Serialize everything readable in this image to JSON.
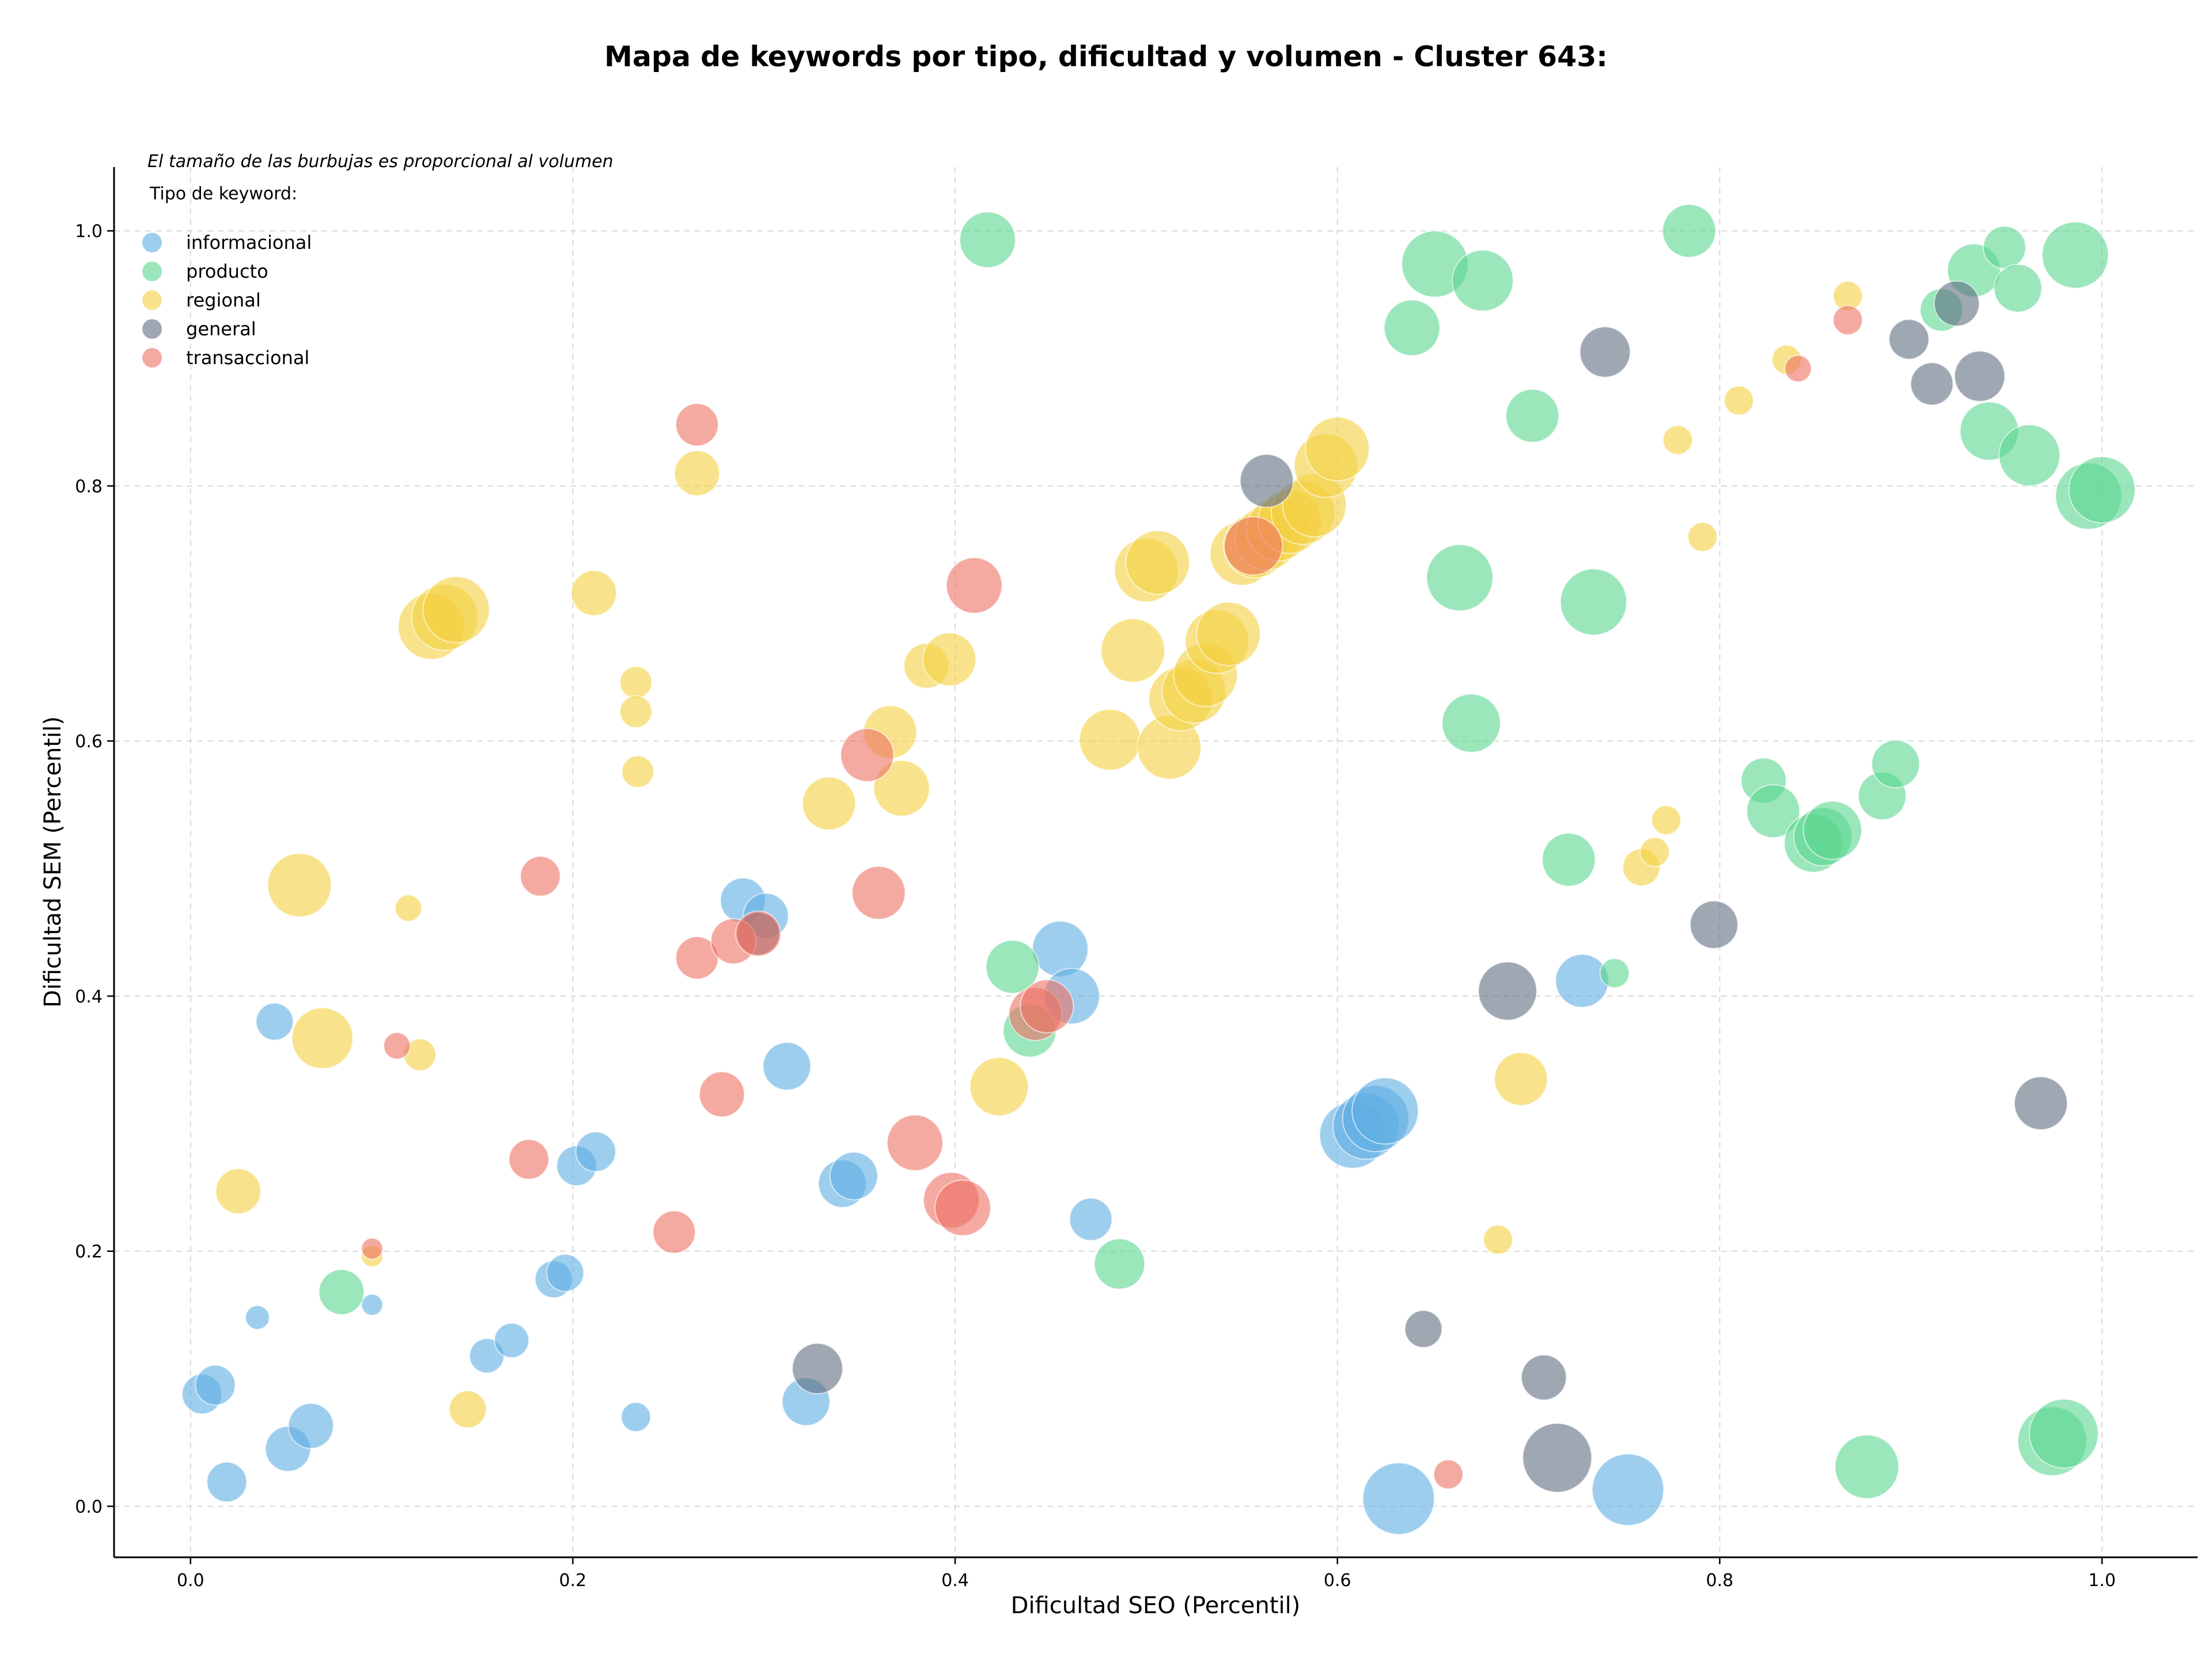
{
  "chart_data": {
    "type": "scatter",
    "title": "Mapa de keywords por tipo, dificultad y volumen - Cluster 643:",
    "xlabel": "Dificultad SEO (Percentil)",
    "ylabel": "Dificultad SEM (Percentil)",
    "xlim": [
      -0.04,
      1.05
    ],
    "ylim": [
      -0.04,
      1.05
    ],
    "xticks": [
      0.0,
      0.2,
      0.4,
      0.6,
      0.8,
      1.0
    ],
    "xtick_labels": [
      "0.0",
      "0.2",
      "0.4",
      "0.6",
      "0.8",
      "1.0"
    ],
    "yticks": [
      0.0,
      0.2,
      0.4,
      0.6,
      0.8,
      1.0
    ],
    "ytick_labels": [
      "0.0",
      "0.2",
      "0.4",
      "0.6",
      "0.8",
      "1.0"
    ],
    "grid": true,
    "size_note": "El tamaño de las burbujas es proporcional al volumen",
    "legend_title": "Tipo de keyword:",
    "legend_position": "top-left",
    "series": [
      {
        "name": "informacional",
        "color": "#5DADE2",
        "points": [
          {
            "x": 0.006,
            "y": 0.088,
            "s": 30
          },
          {
            "x": 0.013,
            "y": 0.095,
            "s": 30
          },
          {
            "x": 0.019,
            "y": 0.019,
            "s": 30
          },
          {
            "x": 0.035,
            "y": 0.148,
            "s": 18
          },
          {
            "x": 0.044,
            "y": 0.38,
            "s": 28
          },
          {
            "x": 0.051,
            "y": 0.045,
            "s": 34
          },
          {
            "x": 0.063,
            "y": 0.063,
            "s": 34
          },
          {
            "x": 0.095,
            "y": 0.158,
            "s": 16
          },
          {
            "x": 0.155,
            "y": 0.118,
            "s": 26
          },
          {
            "x": 0.168,
            "y": 0.13,
            "s": 26
          },
          {
            "x": 0.19,
            "y": 0.178,
            "s": 28
          },
          {
            "x": 0.196,
            "y": 0.183,
            "s": 28
          },
          {
            "x": 0.202,
            "y": 0.267,
            "s": 30
          },
          {
            "x": 0.212,
            "y": 0.278,
            "s": 30
          },
          {
            "x": 0.233,
            "y": 0.07,
            "s": 22
          },
          {
            "x": 0.289,
            "y": 0.475,
            "s": 34
          },
          {
            "x": 0.301,
            "y": 0.463,
            "s": 34
          },
          {
            "x": 0.312,
            "y": 0.345,
            "s": 36
          },
          {
            "x": 0.322,
            "y": 0.082,
            "s": 36
          },
          {
            "x": 0.341,
            "y": 0.253,
            "s": 36
          },
          {
            "x": 0.347,
            "y": 0.259,
            "s": 36
          },
          {
            "x": 0.455,
            "y": 0.437,
            "s": 42
          },
          {
            "x": 0.461,
            "y": 0.4,
            "s": 42
          },
          {
            "x": 0.471,
            "y": 0.225,
            "s": 32
          },
          {
            "x": 0.608,
            "y": 0.291,
            "s": 50
          },
          {
            "x": 0.615,
            "y": 0.298,
            "s": 50
          },
          {
            "x": 0.62,
            "y": 0.304,
            "s": 50
          },
          {
            "x": 0.625,
            "y": 0.31,
            "s": 50
          },
          {
            "x": 0.632,
            "y": 0.006,
            "s": 54
          },
          {
            "x": 0.728,
            "y": 0.412,
            "s": 40
          },
          {
            "x": 0.752,
            "y": 0.013,
            "s": 54
          }
        ]
      },
      {
        "name": "producto",
        "color": "#58D68D",
        "points": [
          {
            "x": 0.079,
            "y": 0.168,
            "s": 34
          },
          {
            "x": 0.417,
            "y": 0.993,
            "s": 42
          },
          {
            "x": 0.43,
            "y": 0.423,
            "s": 40
          },
          {
            "x": 0.439,
            "y": 0.373,
            "s": 40
          },
          {
            "x": 0.486,
            "y": 0.19,
            "s": 38
          },
          {
            "x": 0.639,
            "y": 0.924,
            "s": 42
          },
          {
            "x": 0.651,
            "y": 0.974,
            "s": 50
          },
          {
            "x": 0.664,
            "y": 0.728,
            "s": 50
          },
          {
            "x": 0.67,
            "y": 0.614,
            "s": 44
          },
          {
            "x": 0.676,
            "y": 0.961,
            "s": 46
          },
          {
            "x": 0.702,
            "y": 0.855,
            "s": 40
          },
          {
            "x": 0.721,
            "y": 0.507,
            "s": 40
          },
          {
            "x": 0.734,
            "y": 0.709,
            "s": 50
          },
          {
            "x": 0.745,
            "y": 0.418,
            "s": 22
          },
          {
            "x": 0.784,
            "y": 1.0,
            "s": 40
          },
          {
            "x": 0.823,
            "y": 0.569,
            "s": 34
          },
          {
            "x": 0.828,
            "y": 0.545,
            "s": 40
          },
          {
            "x": 0.849,
            "y": 0.52,
            "s": 44
          },
          {
            "x": 0.854,
            "y": 0.525,
            "s": 44
          },
          {
            "x": 0.859,
            "y": 0.53,
            "s": 44
          },
          {
            "x": 0.877,
            "y": 0.031,
            "s": 48
          },
          {
            "x": 0.885,
            "y": 0.557,
            "s": 36
          },
          {
            "x": 0.892,
            "y": 0.582,
            "s": 36
          },
          {
            "x": 0.916,
            "y": 0.938,
            "s": 32
          },
          {
            "x": 0.933,
            "y": 0.969,
            "s": 40
          },
          {
            "x": 0.941,
            "y": 0.843,
            "s": 44
          },
          {
            "x": 0.949,
            "y": 0.987,
            "s": 32
          },
          {
            "x": 0.956,
            "y": 0.955,
            "s": 36
          },
          {
            "x": 0.962,
            "y": 0.824,
            "s": 46
          },
          {
            "x": 0.974,
            "y": 0.051,
            "s": 52
          },
          {
            "x": 0.98,
            "y": 0.057,
            "s": 52
          },
          {
            "x": 0.986,
            "y": 0.981,
            "s": 50
          },
          {
            "x": 0.993,
            "y": 0.792,
            "s": 50
          },
          {
            "x": 1.0,
            "y": 0.797,
            "s": 50
          }
        ]
      },
      {
        "name": "regional",
        "color": "#F4D03F",
        "points": [
          {
            "x": 0.025,
            "y": 0.247,
            "s": 34
          },
          {
            "x": 0.057,
            "y": 0.487,
            "s": 48
          },
          {
            "x": 0.069,
            "y": 0.367,
            "s": 46
          },
          {
            "x": 0.095,
            "y": 0.196,
            "s": 16
          },
          {
            "x": 0.114,
            "y": 0.469,
            "s": 20
          },
          {
            "x": 0.12,
            "y": 0.354,
            "s": 24
          },
          {
            "x": 0.126,
            "y": 0.69,
            "s": 50
          },
          {
            "x": 0.133,
            "y": 0.697,
            "s": 50
          },
          {
            "x": 0.139,
            "y": 0.703,
            "s": 50
          },
          {
            "x": 0.145,
            "y": 0.076,
            "s": 28
          },
          {
            "x": 0.211,
            "y": 0.716,
            "s": 34
          },
          {
            "x": 0.233,
            "y": 0.646,
            "s": 24
          },
          {
            "x": 0.233,
            "y": 0.623,
            "s": 24
          },
          {
            "x": 0.234,
            "y": 0.576,
            "s": 24
          },
          {
            "x": 0.265,
            "y": 0.81,
            "s": 34
          },
          {
            "x": 0.334,
            "y": 0.551,
            "s": 40
          },
          {
            "x": 0.366,
            "y": 0.607,
            "s": 40
          },
          {
            "x": 0.372,
            "y": 0.563,
            "s": 42
          },
          {
            "x": 0.385,
            "y": 0.659,
            "s": 34
          },
          {
            "x": 0.397,
            "y": 0.664,
            "s": 40
          },
          {
            "x": 0.423,
            "y": 0.329,
            "s": 44
          },
          {
            "x": 0.481,
            "y": 0.601,
            "s": 46
          },
          {
            "x": 0.493,
            "y": 0.671,
            "s": 48
          },
          {
            "x": 0.5,
            "y": 0.734,
            "s": 48
          },
          {
            "x": 0.506,
            "y": 0.74,
            "s": 48
          },
          {
            "x": 0.512,
            "y": 0.595,
            "s": 48
          },
          {
            "x": 0.518,
            "y": 0.633,
            "s": 48
          },
          {
            "x": 0.525,
            "y": 0.639,
            "s": 48
          },
          {
            "x": 0.531,
            "y": 0.652,
            "s": 48
          },
          {
            "x": 0.537,
            "y": 0.678,
            "s": 48
          },
          {
            "x": 0.543,
            "y": 0.684,
            "s": 48
          },
          {
            "x": 0.55,
            "y": 0.747,
            "s": 48
          },
          {
            "x": 0.557,
            "y": 0.753,
            "s": 48
          },
          {
            "x": 0.563,
            "y": 0.759,
            "s": 48
          },
          {
            "x": 0.569,
            "y": 0.766,
            "s": 48
          },
          {
            "x": 0.575,
            "y": 0.772,
            "s": 48
          },
          {
            "x": 0.582,
            "y": 0.779,
            "s": 48
          },
          {
            "x": 0.588,
            "y": 0.785,
            "s": 48
          },
          {
            "x": 0.594,
            "y": 0.816,
            "s": 48
          },
          {
            "x": 0.6,
            "y": 0.829,
            "s": 48
          },
          {
            "x": 0.696,
            "y": 0.335,
            "s": 40
          },
          {
            "x": 0.684,
            "y": 0.209,
            "s": 22
          },
          {
            "x": 0.759,
            "y": 0.501,
            "s": 28
          },
          {
            "x": 0.766,
            "y": 0.513,
            "s": 22
          },
          {
            "x": 0.772,
            "y": 0.538,
            "s": 22
          },
          {
            "x": 0.778,
            "y": 0.836,
            "s": 22
          },
          {
            "x": 0.791,
            "y": 0.76,
            "s": 22
          },
          {
            "x": 0.81,
            "y": 0.867,
            "s": 22
          },
          {
            "x": 0.835,
            "y": 0.899,
            "s": 22
          },
          {
            "x": 0.867,
            "y": 0.949,
            "s": 22
          }
        ]
      },
      {
        "name": "general",
        "color": "#5D6D7E",
        "points": [
          {
            "x": 0.297,
            "y": 0.449,
            "s": 32
          },
          {
            "x": 0.328,
            "y": 0.108,
            "s": 38
          },
          {
            "x": 0.563,
            "y": 0.804,
            "s": 40
          },
          {
            "x": 0.645,
            "y": 0.139,
            "s": 28
          },
          {
            "x": 0.689,
            "y": 0.404,
            "s": 44
          },
          {
            "x": 0.708,
            "y": 0.101,
            "s": 34
          },
          {
            "x": 0.715,
            "y": 0.038,
            "s": 52
          },
          {
            "x": 0.74,
            "y": 0.905,
            "s": 38
          },
          {
            "x": 0.797,
            "y": 0.456,
            "s": 36
          },
          {
            "x": 0.899,
            "y": 0.915,
            "s": 30
          },
          {
            "x": 0.911,
            "y": 0.88,
            "s": 32
          },
          {
            "x": 0.924,
            "y": 0.943,
            "s": 34
          },
          {
            "x": 0.936,
            "y": 0.886,
            "s": 38
          },
          {
            "x": 0.968,
            "y": 0.316,
            "s": 40
          }
        ]
      },
      {
        "name": "transaccional",
        "color": "#EC7063",
        "points": [
          {
            "x": 0.095,
            "y": 0.202,
            "s": 16
          },
          {
            "x": 0.108,
            "y": 0.361,
            "s": 20
          },
          {
            "x": 0.177,
            "y": 0.272,
            "s": 30
          },
          {
            "x": 0.183,
            "y": 0.494,
            "s": 30
          },
          {
            "x": 0.253,
            "y": 0.215,
            "s": 32
          },
          {
            "x": 0.265,
            "y": 0.848,
            "s": 32
          },
          {
            "x": 0.265,
            "y": 0.43,
            "s": 32
          },
          {
            "x": 0.278,
            "y": 0.323,
            "s": 34
          },
          {
            "x": 0.284,
            "y": 0.443,
            "s": 34
          },
          {
            "x": 0.297,
            "y": 0.449,
            "s": 34
          },
          {
            "x": 0.354,
            "y": 0.589,
            "s": 40
          },
          {
            "x": 0.36,
            "y": 0.481,
            "s": 40
          },
          {
            "x": 0.379,
            "y": 0.285,
            "s": 42
          },
          {
            "x": 0.398,
            "y": 0.24,
            "s": 42
          },
          {
            "x": 0.404,
            "y": 0.234,
            "s": 42
          },
          {
            "x": 0.41,
            "y": 0.722,
            "s": 42
          },
          {
            "x": 0.442,
            "y": 0.386,
            "s": 40
          },
          {
            "x": 0.448,
            "y": 0.392,
            "s": 40
          },
          {
            "x": 0.556,
            "y": 0.753,
            "s": 44
          },
          {
            "x": 0.658,
            "y": 0.025,
            "s": 22
          },
          {
            "x": 0.841,
            "y": 0.892,
            "s": 20
          },
          {
            "x": 0.867,
            "y": 0.93,
            "s": 22
          }
        ]
      }
    ]
  }
}
